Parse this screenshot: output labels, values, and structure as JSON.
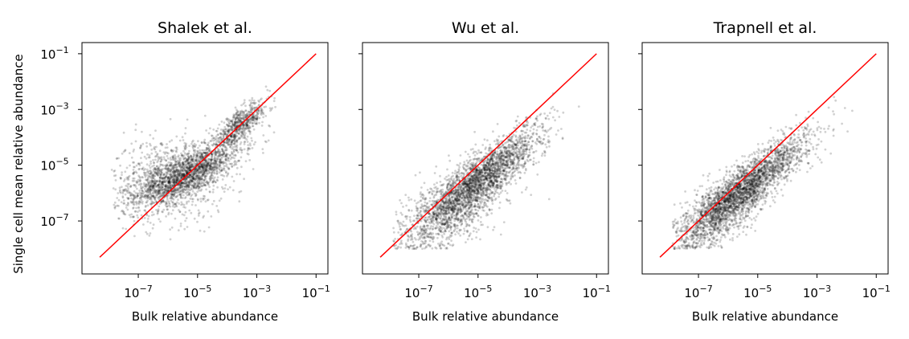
{
  "figure": {
    "ylabel": "Single cell mean relative abundance"
  },
  "chart_data": [
    {
      "type": "scatter",
      "title": "Shalek et al.",
      "xlabel": "Bulk relative abundance",
      "ylabel": "Single cell mean relative abundance",
      "log_x": true,
      "log_y": true,
      "xlim_log10": [
        -8.9,
        -0.6
      ],
      "ylim_log10": [
        -8.9,
        -0.6
      ],
      "x_ticks": [
        {
          "value": "1e-7",
          "base": "10",
          "exp": "−7"
        },
        {
          "value": "1e-5",
          "base": "10",
          "exp": "−5"
        },
        {
          "value": "1e-3",
          "base": "10",
          "exp": "−3"
        },
        {
          "value": "1e-1",
          "base": "10",
          "exp": "−1"
        }
      ],
      "y_ticks": [
        {
          "value": "1e-7",
          "base": "10",
          "exp": "−7"
        },
        {
          "value": "1e-5",
          "base": "10",
          "exp": "−5"
        },
        {
          "value": "1e-3",
          "base": "10",
          "exp": "−3"
        },
        {
          "value": "1e-1",
          "base": "10",
          "exp": "−1"
        }
      ],
      "y_tick_labels_visible": true,
      "reference_line": {
        "x": [
          "5e-9",
          "1e-1"
        ],
        "y": [
          "5e-9",
          "1e-1"
        ],
        "color": "#ff0000"
      },
      "point_color": "#000000",
      "cloud": [
        {
          "cx_log10": -5.3,
          "cy_log10": -5.3,
          "sx": 0.9,
          "sy": 0.55,
          "rho": 0.75,
          "weight": 0.5
        },
        {
          "cx_log10": -6.0,
          "cy_log10": -5.5,
          "sx": 0.95,
          "sy": 0.75,
          "rho": 0.1,
          "weight": 0.3
        },
        {
          "cx_log10": -3.6,
          "cy_log10": -3.6,
          "sx": 0.5,
          "sy": 0.45,
          "rho": 0.8,
          "weight": 0.2
        }
      ],
      "floor_log10": -8.0
    },
    {
      "type": "scatter",
      "title": "Wu et al.",
      "xlabel": "Bulk relative abundance",
      "log_x": true,
      "log_y": true,
      "xlim_log10": [
        -8.9,
        -0.6
      ],
      "ylim_log10": [
        -8.9,
        -0.6
      ],
      "x_ticks": [
        {
          "value": "1e-7",
          "base": "10",
          "exp": "−7"
        },
        {
          "value": "1e-5",
          "base": "10",
          "exp": "−5"
        },
        {
          "value": "1e-3",
          "base": "10",
          "exp": "−3"
        },
        {
          "value": "1e-1",
          "base": "10",
          "exp": "−1"
        }
      ],
      "y_ticks": [
        {
          "value": "1e-7"
        },
        {
          "value": "1e-5"
        },
        {
          "value": "1e-3"
        },
        {
          "value": "1e-1"
        }
      ],
      "y_tick_labels_visible": false,
      "reference_line": {
        "x": [
          "5e-9",
          "1e-1"
        ],
        "y": [
          "5e-9",
          "1e-1"
        ],
        "color": "#ff0000"
      },
      "point_color": "#000000",
      "cloud": [
        {
          "cx_log10": -4.9,
          "cy_log10": -5.5,
          "sx": 1.0,
          "sy": 0.9,
          "rho": 0.85,
          "weight": 0.75
        },
        {
          "cx_log10": -6.0,
          "cy_log10": -6.6,
          "sx": 0.9,
          "sy": 0.8,
          "rho": 0.5,
          "weight": 0.25
        }
      ],
      "floor_log10": -8.0
    },
    {
      "type": "scatter",
      "title": "Trapnell et al.",
      "xlabel": "Bulk relative abundance",
      "log_x": true,
      "log_y": true,
      "xlim_log10": [
        -8.9,
        -0.6
      ],
      "ylim_log10": [
        -8.9,
        -0.6
      ],
      "x_ticks": [
        {
          "value": "1e-7",
          "base": "10",
          "exp": "−7"
        },
        {
          "value": "1e-5",
          "base": "10",
          "exp": "−5"
        },
        {
          "value": "1e-3",
          "base": "10",
          "exp": "−3"
        },
        {
          "value": "1e-1",
          "base": "10",
          "exp": "−1"
        }
      ],
      "y_ticks": [
        {
          "value": "1e-7"
        },
        {
          "value": "1e-5"
        },
        {
          "value": "1e-3"
        },
        {
          "value": "1e-1"
        }
      ],
      "y_tick_labels_visible": false,
      "reference_line": {
        "x": [
          "5e-9",
          "1e-1"
        ],
        "y": [
          "5e-9",
          "1e-1"
        ],
        "color": "#ff0000"
      },
      "point_color": "#000000",
      "cloud": [
        {
          "cx_log10": -5.4,
          "cy_log10": -5.8,
          "sx": 1.05,
          "sy": 0.95,
          "rho": 0.88,
          "weight": 0.8
        },
        {
          "cx_log10": -6.4,
          "cy_log10": -6.8,
          "sx": 0.8,
          "sy": 0.7,
          "rho": 0.6,
          "weight": 0.2
        }
      ],
      "floor_log10": -8.0
    }
  ]
}
